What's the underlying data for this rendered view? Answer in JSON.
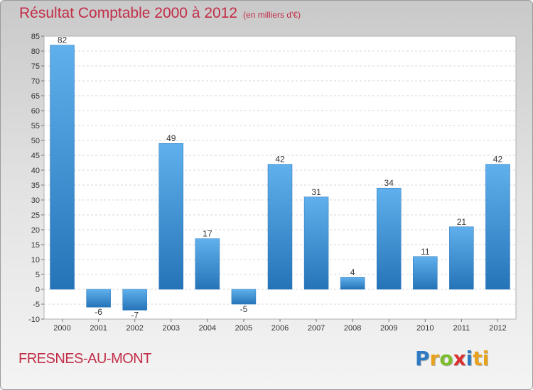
{
  "chart_data": {
    "type": "bar",
    "title": "Résultat Comptable 2000 à 2012",
    "subtitle": "(en milliers d'€)",
    "categories": [
      "2000",
      "2001",
      "2002",
      "2003",
      "2004",
      "2005",
      "2006",
      "2007",
      "2008",
      "2009",
      "2010",
      "2011",
      "2012"
    ],
    "values": [
      82,
      -6,
      -7,
      49,
      17,
      -5,
      42,
      31,
      4,
      34,
      11,
      21,
      42
    ],
    "ylim": [
      -10,
      85
    ],
    "yticks": [
      -10,
      -5,
      0,
      5,
      10,
      15,
      20,
      25,
      30,
      35,
      40,
      45,
      50,
      55,
      60,
      65,
      70,
      75,
      80,
      85
    ],
    "grid": true,
    "xlabel": "",
    "ylabel": "",
    "colors": {
      "bar": "#3c8fd6",
      "bar_light": "#5fb0ec",
      "bar_dark": "#2674b8",
      "title": "#c22d47"
    }
  },
  "footer": {
    "commune": "FRESNES-AU-MONT",
    "logo_letters": [
      "P",
      "r",
      "o",
      "x",
      "i",
      "ti"
    ]
  }
}
